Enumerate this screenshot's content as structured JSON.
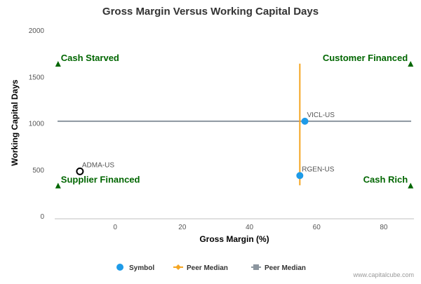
{
  "chart_data": {
    "type": "scatter",
    "title": "Gross Margin Versus Working Capital Days",
    "xlabel": "Gross Margin (%)",
    "ylabel": "Working Capital Days",
    "xlim": [
      -18,
      89
    ],
    "ylim": [
      0,
      2000
    ],
    "x_ticks": [
      0,
      20,
      40,
      60,
      80
    ],
    "y_ticks": [
      0,
      500,
      1000,
      1500,
      2000
    ],
    "grid": false,
    "points": [
      {
        "label": "VICL-US",
        "x": 56.5,
        "y": 1020,
        "style": "filled",
        "color": "#1e9be8"
      },
      {
        "label": "RGEN-US",
        "x": 55,
        "y": 435,
        "style": "filled",
        "color": "#1e9be8"
      },
      {
        "label": "ADMA-US",
        "x": -10.5,
        "y": 480,
        "style": "hollow",
        "color": "#000000"
      }
    ],
    "peer_median_x": {
      "value": 55,
      "y_range": [
        330,
        1640
      ],
      "color": "#f5a623"
    },
    "peer_median_y": {
      "value": 1020,
      "color": "#8c969f"
    },
    "quadrants": [
      {
        "label": "Cash Starved",
        "x": -17,
        "y": 1630,
        "align": "start"
      },
      {
        "label": "Customer Financed",
        "x": 88,
        "y": 1630,
        "align": "end"
      },
      {
        "label": "Supplier Financed",
        "x": -17,
        "y": 320,
        "align": "start"
      },
      {
        "label": "Cash Rich",
        "x": 88,
        "y": 320,
        "align": "end"
      }
    ],
    "quadrant_color": "#006600",
    "legend": {
      "placement": "bottom",
      "items": [
        {
          "label": "Symbol",
          "marker": "circle",
          "color": "#1e9be8"
        },
        {
          "label": "Peer Median",
          "marker": "diamond-line",
          "color": "#f5a623"
        },
        {
          "label": "Peer Median",
          "marker": "square-line",
          "color": "#8c969f"
        }
      ]
    },
    "credit": "www.capitalcube.com"
  }
}
